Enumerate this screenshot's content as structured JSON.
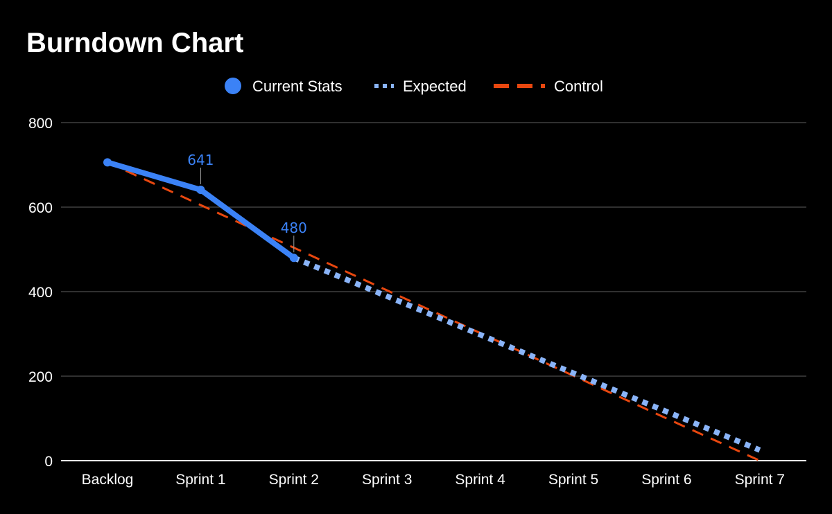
{
  "chart_data": {
    "type": "line",
    "title": "Burndown Chart",
    "xlabel": "",
    "ylabel": "",
    "categories": [
      "Backlog",
      "Sprint 1",
      "Sprint 2",
      "Sprint 3",
      "Sprint 4",
      "Sprint 5",
      "Sprint 6",
      "Sprint 7"
    ],
    "ylim": [
      0,
      800
    ],
    "yticks": [
      "0",
      "200",
      "400",
      "600",
      "800"
    ],
    "grid": true,
    "legend_position": "top-center",
    "series": [
      {
        "name": "Current Stats",
        "values": [
          706,
          641,
          480,
          null,
          null,
          null,
          null,
          null
        ],
        "color": "#3b82f6",
        "style": "solid",
        "data_labels": [
          null,
          "641",
          "480",
          null,
          null,
          null,
          null,
          null
        ]
      },
      {
        "name": "Expected",
        "values": [
          null,
          null,
          480,
          389,
          298,
          207,
          116,
          25
        ],
        "color": "#8ab4f8",
        "style": "dotted"
      },
      {
        "name": "Control",
        "values": [
          706,
          605,
          504,
          403,
          302,
          201,
          100,
          0
        ],
        "color": "#e8470f",
        "style": "dashed"
      }
    ]
  }
}
